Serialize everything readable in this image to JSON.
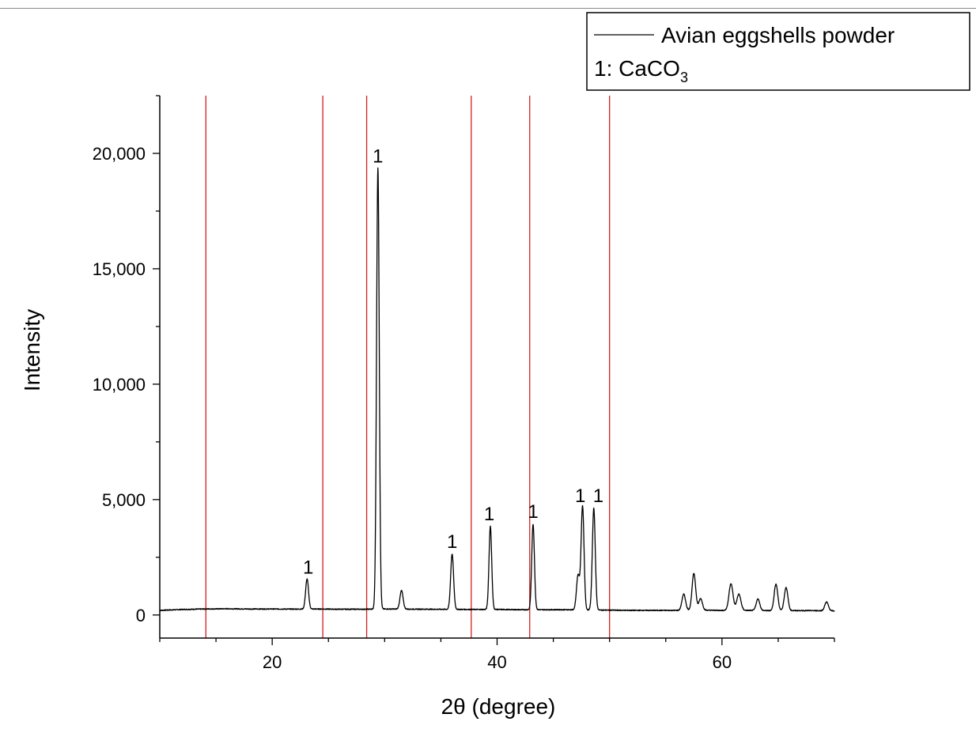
{
  "chart_data": {
    "type": "line",
    "xlabel": "2θ (degree)",
    "ylabel": "Intensity",
    "xlim": [
      10,
      70
    ],
    "ylim": [
      -1000,
      22500
    ],
    "x_ticks": [
      20,
      40,
      60
    ],
    "x_tick_labels": [
      "20",
      "40",
      "60"
    ],
    "y_ticks": [
      0,
      5000,
      10000,
      15000,
      20000
    ],
    "y_tick_labels": [
      "0",
      "5,000",
      "10,000",
      "15,000",
      "20,000"
    ],
    "legend": {
      "placement": "top-right",
      "series_label": "Avian eggshells powder",
      "phase_label_prefix": "1: CaCO",
      "phase_label_subscript": "3"
    },
    "reference_lines_x": [
      14.1,
      24.5,
      28.4,
      37.7,
      42.9,
      50.0
    ],
    "reference_line_color": "#d42020",
    "series": [
      {
        "name": "Avian eggshells powder",
        "color": "#000000",
        "baseline": [
          [
            10,
            200
          ],
          [
            12,
            240
          ],
          [
            14,
            260
          ],
          [
            16,
            270
          ],
          [
            18,
            260
          ],
          [
            20,
            260
          ],
          [
            22,
            255
          ],
          [
            24,
            260
          ],
          [
            26,
            250
          ],
          [
            28,
            250
          ],
          [
            30,
            260
          ],
          [
            32,
            255
          ],
          [
            34,
            250
          ],
          [
            36,
            245
          ],
          [
            38,
            240
          ],
          [
            40,
            240
          ],
          [
            42,
            230
          ],
          [
            44,
            230
          ],
          [
            46,
            230
          ],
          [
            48,
            220
          ],
          [
            50,
            210
          ],
          [
            52,
            200
          ],
          [
            54,
            200
          ],
          [
            56,
            200
          ],
          [
            58,
            210
          ],
          [
            60,
            200
          ],
          [
            62,
            200
          ],
          [
            64,
            190
          ],
          [
            66,
            190
          ],
          [
            68,
            190
          ],
          [
            70,
            180
          ]
        ],
        "peaks": [
          {
            "x": 23.1,
            "height": 1300,
            "width": 0.13
          },
          {
            "x": 29.4,
            "height": 19100,
            "width": 0.12
          },
          {
            "x": 31.5,
            "height": 800,
            "width": 0.14
          },
          {
            "x": 36.0,
            "height": 2400,
            "width": 0.13
          },
          {
            "x": 39.4,
            "height": 3600,
            "width": 0.12
          },
          {
            "x": 43.2,
            "height": 3700,
            "width": 0.12
          },
          {
            "x": 47.2,
            "height": 1500,
            "width": 0.14
          },
          {
            "x": 47.6,
            "height": 4500,
            "width": 0.13
          },
          {
            "x": 48.6,
            "height": 4400,
            "width": 0.13
          },
          {
            "x": 56.6,
            "height": 700,
            "width": 0.16
          },
          {
            "x": 57.5,
            "height": 1600,
            "width": 0.16
          },
          {
            "x": 58.1,
            "height": 500,
            "width": 0.16
          },
          {
            "x": 60.8,
            "height": 1150,
            "width": 0.18
          },
          {
            "x": 61.5,
            "height": 700,
            "width": 0.18
          },
          {
            "x": 63.2,
            "height": 500,
            "width": 0.16
          },
          {
            "x": 64.8,
            "height": 1150,
            "width": 0.16
          },
          {
            "x": 65.7,
            "height": 1000,
            "width": 0.16
          },
          {
            "x": 69.3,
            "height": 380,
            "width": 0.16
          }
        ]
      }
    ],
    "peak_labels": [
      {
        "x": 23.2,
        "y": 1800,
        "text": "1"
      },
      {
        "x": 29.4,
        "y": 19600,
        "text": "1"
      },
      {
        "x": 36.0,
        "y": 2900,
        "text": "1"
      },
      {
        "x": 39.3,
        "y": 4100,
        "text": "1"
      },
      {
        "x": 43.2,
        "y": 4200,
        "text": "1"
      },
      {
        "x": 47.4,
        "y": 4900,
        "text": "1"
      },
      {
        "x": 49.0,
        "y": 4900,
        "text": "1"
      }
    ]
  }
}
